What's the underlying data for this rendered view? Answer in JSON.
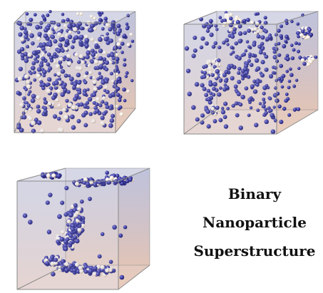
{
  "caption": {
    "line1": "Binary",
    "line2": "Nanoparticle",
    "line3": "Superstructure"
  },
  "colors": {
    "particle_blue": "#3a3a9c",
    "particle_blue_dark": "#1e1e6a",
    "particle_white": "#f2eadf",
    "box_face_gradient_top": "#7f86b8",
    "box_face_gradient_bottom": "#d8a487",
    "box_edge": "#8a8a8a"
  },
  "panels": [
    {
      "name": "panel-dispersed",
      "state": "dispersed particles"
    },
    {
      "name": "panel-clustering",
      "state": "early clustering"
    },
    {
      "name": "panel-aggregated",
      "state": "aggregated superstructure"
    }
  ]
}
